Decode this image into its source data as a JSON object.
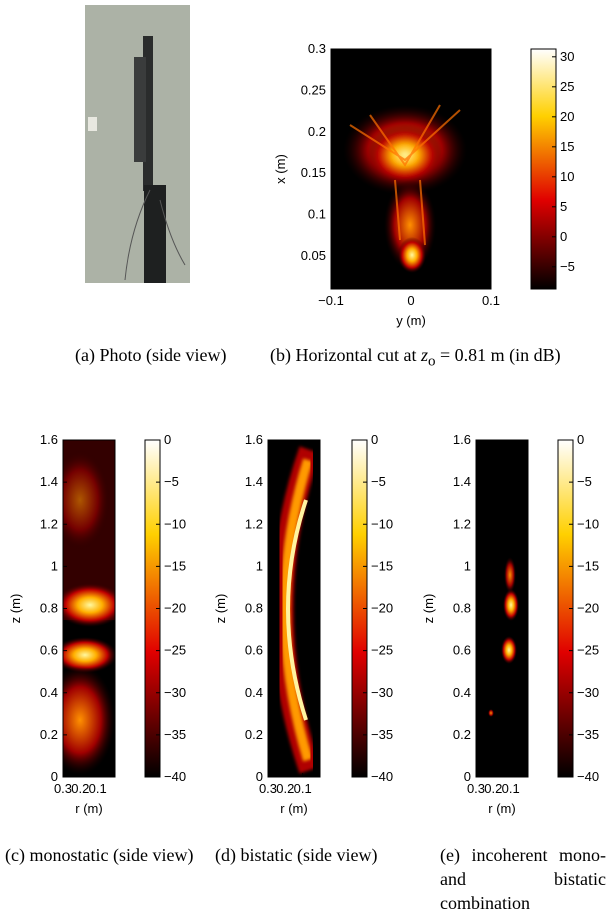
{
  "captions": [
    {
      "label": "(a)",
      "text": "Photo (side view)"
    },
    {
      "label": "(b)",
      "text": "Horizontal cut at",
      "symbol": "z",
      "subscript": "o",
      "suffix": "= 0.81 m (in dB)"
    },
    {
      "label": "(c)",
      "text": "monostatic (side view)"
    },
    {
      "label": "(d)",
      "text": "bistatic (side view)"
    },
    {
      "label": "(e)",
      "text": "incoherent mono- and bistatic combination"
    }
  ],
  "chart_data": [
    {
      "type": "heatmap",
      "xlabel": "y (m)",
      "ylabel": "x (m)",
      "xlim": [
        -0.1,
        0.1
      ],
      "xticks": [
        {
          "value": -0.1,
          "label": "−0.1"
        },
        0,
        0.1
      ],
      "ylim": [
        0.01,
        0.3
      ],
      "yticks": [
        0.05,
        0.1,
        0.15,
        0.2,
        0.25,
        0.3
      ],
      "clim": [
        -8.7,
        31.3
      ],
      "cticks": [
        {
          "value": -5,
          "label": "−5"
        },
        0,
        5,
        10,
        15,
        20,
        25,
        30
      ]
    },
    {
      "type": "heatmap",
      "xlabel": "r (m)",
      "ylabel": "z (m)",
      "xlim": [
        0.3,
        0
      ],
      "xticks": [
        0.3,
        0.2,
        0.1
      ],
      "ylim": [
        0,
        1.6
      ],
      "yticks": [
        0,
        0.2,
        0.4,
        0.6,
        0.8,
        1,
        1.2,
        1.4,
        1.6
      ],
      "clim": [
        -40,
        0
      ],
      "cticks": [
        {
          "value": -40,
          "label": "−40"
        },
        {
          "value": -35,
          "label": "−35"
        },
        {
          "value": -30,
          "label": "−30"
        },
        {
          "value": -25,
          "label": "−25"
        },
        {
          "value": -20,
          "label": "−20"
        },
        {
          "value": -15,
          "label": "−15"
        },
        {
          "value": -10,
          "label": "−10"
        },
        {
          "value": -5,
          "label": "−5"
        },
        0
      ]
    },
    {
      "type": "heatmap",
      "xlabel": "r (m)",
      "ylabel": "z (m)",
      "xlim": [
        0.3,
        0
      ],
      "xticks": [
        0.3,
        0.2,
        0.1
      ],
      "ylim": [
        0,
        1.6
      ],
      "yticks": [
        0,
        0.2,
        0.4,
        0.6,
        0.8,
        1,
        1.2,
        1.4,
        1.6
      ],
      "clim": [
        -40,
        0
      ],
      "cticks": [
        {
          "value": -40,
          "label": "−40"
        },
        {
          "value": -35,
          "label": "−35"
        },
        {
          "value": -30,
          "label": "−30"
        },
        {
          "value": -25,
          "label": "−25"
        },
        {
          "value": -20,
          "label": "−20"
        },
        {
          "value": -15,
          "label": "−15"
        },
        {
          "value": -10,
          "label": "−10"
        },
        {
          "value": -5,
          "label": "−5"
        },
        0
      ]
    },
    {
      "type": "heatmap",
      "xlabel": "r (m)",
      "ylabel": "z (m)",
      "xlim": [
        0.3,
        0
      ],
      "xticks": [
        0.3,
        0.2,
        0.1
      ],
      "ylim": [
        0,
        1.6
      ],
      "yticks": [
        0,
        0.2,
        0.4,
        0.6,
        0.8,
        1,
        1.2,
        1.4,
        1.6
      ],
      "clim": [
        -40,
        0
      ],
      "cticks": [
        {
          "value": -40,
          "label": "−40"
        },
        {
          "value": -35,
          "label": "−35"
        },
        {
          "value": -30,
          "label": "−30"
        },
        {
          "value": -25,
          "label": "−25"
        },
        {
          "value": -20,
          "label": "−20"
        },
        {
          "value": -15,
          "label": "−15"
        },
        {
          "value": -10,
          "label": "−10"
        },
        {
          "value": -5,
          "label": "−5"
        },
        0
      ]
    }
  ]
}
